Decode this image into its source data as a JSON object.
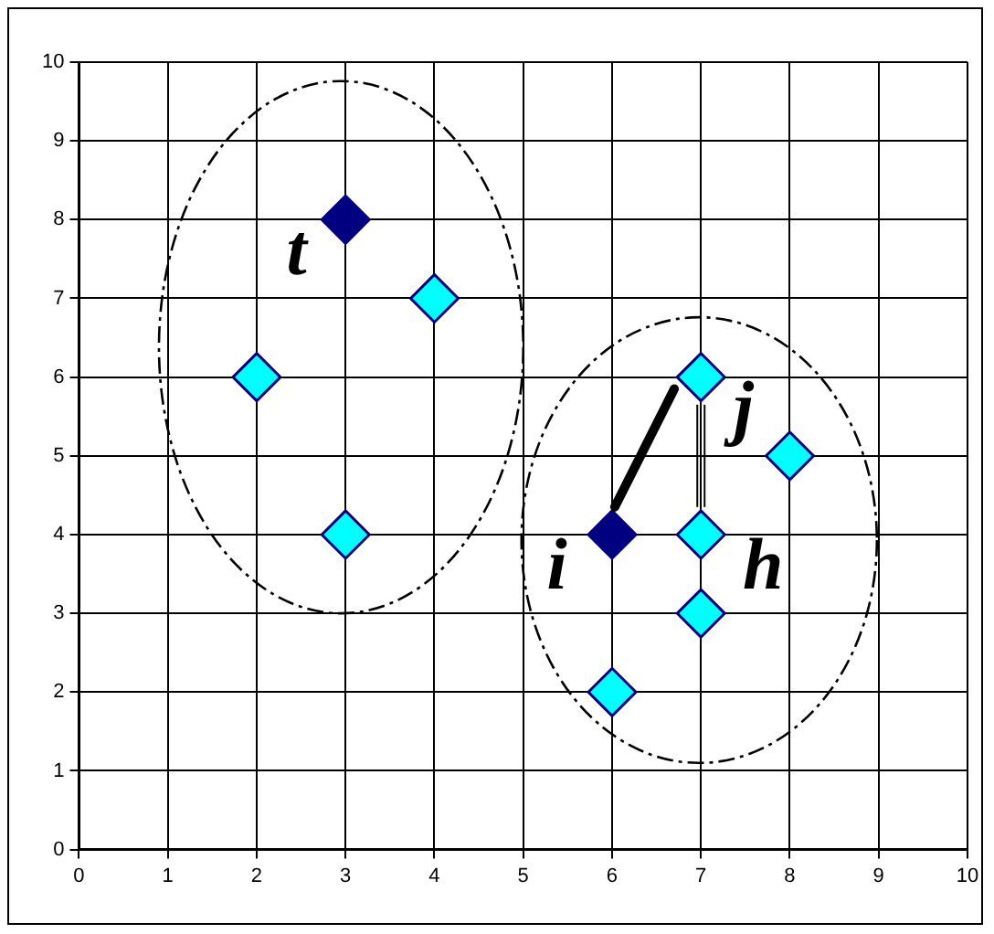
{
  "chart_data": {
    "type": "scatter",
    "marker": "diamond",
    "grid": true,
    "legend": false,
    "xlim": [
      0,
      10
    ],
    "ylim": [
      0,
      10
    ],
    "xticks": [
      0,
      1,
      2,
      3,
      4,
      5,
      6,
      7,
      8,
      9,
      10
    ],
    "yticks": [
      0,
      1,
      2,
      3,
      4,
      5,
      6,
      7,
      8,
      9,
      10
    ],
    "series": [
      {
        "color": "#00ffff",
        "x": [
          2,
          3,
          4,
          7,
          8,
          7,
          7,
          6
        ],
        "values": [
          6,
          4,
          7,
          6,
          5,
          4,
          3,
          2
        ]
      },
      {
        "color": "#000080",
        "x": [
          3,
          6
        ],
        "values": [
          8,
          4
        ]
      }
    ],
    "annotations": [
      {
        "text": "t",
        "x": 3,
        "y": 8
      },
      {
        "text": "i",
        "x": 6,
        "y": 4
      },
      {
        "text": "j",
        "x": 7,
        "y": 6
      },
      {
        "text": "h",
        "x": 7,
        "y": 4
      }
    ]
  }
}
